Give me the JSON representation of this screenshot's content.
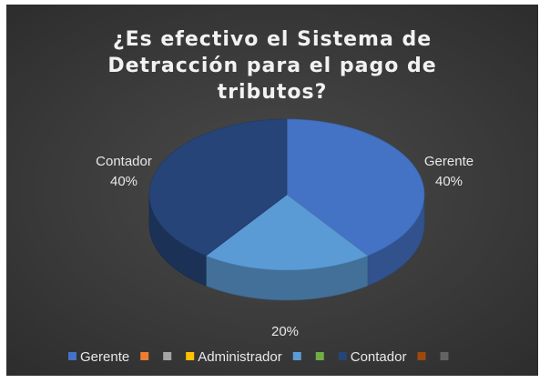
{
  "chart_data": {
    "type": "pie",
    "title_lines": [
      "¿Es efectivo el Sistema de",
      "Detracción para el pago de",
      "tributos?"
    ],
    "slices": [
      {
        "name": "Gerente",
        "value": 40,
        "label": "Gerente",
        "pct": "40%",
        "color": "#4472C4"
      },
      {
        "name": "Administrador",
        "value": 20,
        "label": "",
        "pct": "20%",
        "color": "#5B9BD5"
      },
      {
        "name": "Contador",
        "value": 40,
        "label": "Contador",
        "pct": "40%",
        "color": "#264478"
      }
    ],
    "legend": [
      {
        "label": "Gerente",
        "color": "#4472C4"
      },
      {
        "label": "",
        "color": "#ED7D31"
      },
      {
        "label": "",
        "color": "#A5A5A5"
      },
      {
        "label": "Administrador",
        "color": "#FFC000"
      },
      {
        "label": "",
        "color": "#5B9BD5"
      },
      {
        "label": "",
        "color": "#70AD47"
      },
      {
        "label": "Contador",
        "color": "#264478"
      },
      {
        "label": "",
        "color": "#9E480E"
      },
      {
        "label": "",
        "color": "#636363"
      }
    ],
    "legend_position": "bottom",
    "background": "#3a3a3a",
    "style": "3d-pie"
  }
}
